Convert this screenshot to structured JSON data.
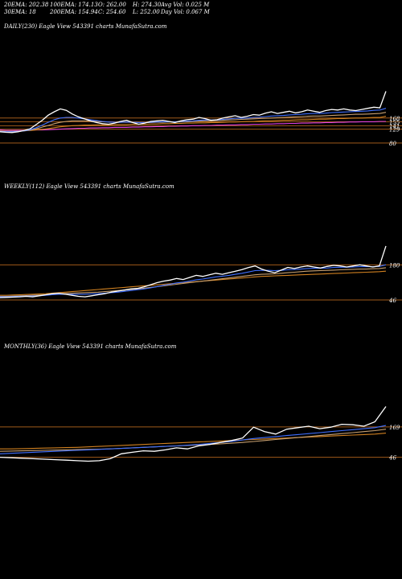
{
  "header": {
    "ema20": "20EMA: 202.38",
    "ema100": "100EMA: 174.13",
    "open": "O: 262.00",
    "high": "H: 274.30",
    "avgvol": "Avg Vol: 0.025 M",
    "ema30": "30EMA: 18",
    "ema200": "200EMA: 154.94",
    "close": "C: 254.60",
    "low": "L: 252.00",
    "dayvol": "Day Vol: 0.067 M"
  },
  "panels": [
    {
      "title": "DAILY(230) Eagle   View  543391 charts MunafaSutra.com"
    },
    {
      "title": "WEEKLY(112) Eagle   View  543391 charts MunafaSutra.com"
    },
    {
      "title": "MONTHLY(36) Eagle   View  543391 charts MunafaSutra.com"
    }
  ],
  "colors": {
    "price": "#ffffff",
    "ema_blue": "#3f6fff",
    "ema_magenta": "#e040e0",
    "ema_orange": "#d08020",
    "ema_tan": "#c8a070",
    "level_line": "#a05a1a"
  },
  "chart_data": [
    {
      "type": "line",
      "title": "DAILY(230) Eagle View 543391 charts MunafaSutra.com",
      "level_labels": [
        "168",
        "155",
        "141",
        "129",
        "80"
      ],
      "levels": [
        168,
        155,
        141,
        129,
        80
      ],
      "series": [
        {
          "values": [
            120,
            118,
            117,
            120,
            124,
            130,
            145,
            160,
            178,
            190,
            200,
            195,
            182,
            172,
            165,
            158,
            152,
            148,
            146,
            150,
            156,
            160,
            152,
            146,
            150,
            156,
            158,
            160,
            156,
            152,
            158,
            162,
            164,
            170,
            166,
            160,
            162,
            168,
            172,
            176,
            170,
            174,
            180,
            178,
            185,
            190,
            184,
            188,
            192,
            186,
            190,
            196,
            192,
            188,
            194,
            198,
            196,
            200,
            196,
            194,
            198,
            202,
            206,
            204,
            262
          ]
        },
        {
          "values": [
            121,
            120,
            120,
            121,
            123,
            127,
            134,
            143,
            153,
            162,
            168,
            170,
            170,
            168,
            165,
            162,
            159,
            156,
            154,
            153,
            153,
            154,
            153,
            152,
            152,
            153,
            154,
            155,
            155,
            155,
            156,
            157,
            158,
            160,
            161,
            161,
            161,
            163,
            165,
            167,
            167,
            168,
            170,
            171,
            173,
            175,
            176,
            177,
            179,
            180,
            181,
            183,
            184,
            184,
            185,
            187,
            188,
            189,
            190,
            191,
            192,
            193,
            195,
            196,
            202
          ]
        },
        {
          "values": [
            122,
            121,
            121,
            122,
            123,
            125,
            130,
            136,
            142,
            148,
            153,
            156,
            158,
            158,
            158,
            157,
            156,
            155,
            154,
            153,
            153,
            153,
            153,
            152,
            152,
            152,
            153,
            153,
            154,
            154,
            154,
            155,
            156,
            157,
            158,
            158,
            159,
            160,
            161,
            162,
            163,
            164,
            165,
            166,
            167,
            168,
            169,
            170,
            171,
            172,
            173,
            174,
            175,
            175,
            176,
            177,
            178,
            179,
            180,
            181,
            181,
            182,
            183,
            184,
            188
          ]
        },
        {
          "values": [
            123,
            122,
            122,
            122,
            123,
            124,
            126,
            128,
            131,
            134,
            137,
            139,
            141,
            142,
            143,
            143,
            144,
            144,
            144,
            145,
            145,
            145,
            146,
            146,
            146,
            147,
            147,
            148,
            148,
            149,
            149,
            150,
            150,
            151,
            151,
            152,
            152,
            153,
            154,
            154,
            155,
            156,
            156,
            157,
            158,
            158,
            159,
            160,
            160,
            161,
            162,
            162,
            163,
            164,
            164,
            165,
            166,
            166,
            167,
            168,
            168,
            169,
            170,
            170,
            174
          ]
        },
        {
          "values": [
            126,
            125,
            125,
            125,
            125,
            125,
            126,
            126,
            127,
            128,
            129,
            130,
            131,
            132,
            132,
            133,
            133,
            134,
            134,
            135,
            135,
            135,
            136,
            136,
            137,
            137,
            138,
            138,
            139,
            139,
            140,
            140,
            141,
            141,
            142,
            142,
            143,
            143,
            144,
            144,
            145,
            145,
            146,
            146,
            147,
            147,
            148,
            148,
            149,
            149,
            150,
            150,
            151,
            151,
            152,
            152,
            153,
            153,
            154,
            154,
            155,
            155,
            155,
            156,
            156
          ]
        }
      ]
    },
    {
      "type": "line",
      "title": "WEEKLY(112) Eagle View 543391 charts MunafaSutra.com",
      "level_labels": [
        "180",
        "46"
      ],
      "levels": [
        180,
        46
      ],
      "series": [
        {
          "values": [
            55,
            56,
            57,
            58,
            60,
            58,
            62,
            66,
            70,
            72,
            68,
            64,
            60,
            58,
            62,
            66,
            70,
            76,
            80,
            84,
            88,
            90,
            96,
            104,
            112,
            118,
            122,
            128,
            124,
            132,
            140,
            136,
            142,
            148,
            144,
            150,
            156,
            162,
            170,
            176,
            164,
            156,
            150,
            160,
            170,
            166,
            172,
            176,
            172,
            168,
            174,
            178,
            176,
            172,
            176,
            180,
            176,
            172,
            176,
            252
          ]
        },
        {
          "values": [
            58,
            58,
            59,
            60,
            61,
            61,
            62,
            64,
            66,
            68,
            68,
            68,
            68,
            68,
            69,
            70,
            72,
            74,
            76,
            79,
            82,
            85,
            88,
            92,
            97,
            102,
            106,
            111,
            114,
            118,
            123,
            126,
            130,
            134,
            137,
            140,
            144,
            148,
            153,
            158,
            159,
            159,
            158,
            159,
            161,
            162,
            164,
            166,
            167,
            167,
            168,
            170,
            171,
            171,
            172,
            173,
            173,
            173,
            174,
            180
          ]
        },
        {
          "values": [
            60,
            60,
            61,
            62,
            63,
            64,
            65,
            66,
            68,
            70,
            71,
            72,
            73,
            74,
            75,
            76,
            78,
            80,
            82,
            84,
            86,
            88,
            91,
            94,
            97,
            100,
            103,
            106,
            109,
            112,
            115,
            118,
            121,
            124,
            127,
            130,
            133,
            136,
            139,
            142,
            144,
            145,
            146,
            148,
            150,
            152,
            154,
            156,
            157,
            158,
            159,
            160,
            161,
            162,
            163,
            164,
            164,
            165,
            166,
            169
          ]
        },
        {
          "values": [
            64,
            64,
            65,
            66,
            67,
            68,
            69,
            70,
            72,
            74,
            76,
            78,
            80,
            82,
            84,
            86,
            88,
            90,
            92,
            94,
            96,
            98,
            100,
            102,
            104,
            106,
            108,
            110,
            112,
            114,
            116,
            118,
            120,
            122,
            124,
            126,
            128,
            130,
            132,
            134,
            136,
            137,
            138,
            139,
            140,
            141,
            142,
            143,
            144,
            145,
            146,
            147,
            148,
            149,
            150,
            151,
            152,
            153,
            154,
            156
          ]
        }
      ]
    },
    {
      "type": "line",
      "title": "MONTHLY(36) Eagle View 543391 charts MunafaSutra.com",
      "level_labels": [
        "169",
        "46"
      ],
      "levels": [
        169,
        46
      ],
      "series": [
        {
          "values": [
            46,
            44,
            42,
            40,
            38,
            36,
            34,
            32,
            30,
            32,
            40,
            60,
            66,
            72,
            70,
            76,
            84,
            80,
            92,
            98,
            106,
            114,
            124,
            168,
            150,
            140,
            160,
            166,
            172,
            162,
            168,
            180,
            178,
            172,
            190,
            252
          ]
        },
        {
          "values": [
            60,
            62,
            64,
            66,
            68,
            70,
            72,
            74,
            76,
            78,
            80,
            82,
            84,
            86,
            88,
            90,
            92,
            95,
            98,
            102,
            106,
            110,
            116,
            122,
            126,
            130,
            134,
            138,
            142,
            146,
            150,
            154,
            158,
            162,
            166,
            175
          ]
        },
        {
          "values": [
            70,
            71,
            72,
            73,
            74,
            75,
            76,
            77,
            78,
            79,
            80,
            82,
            84,
            86,
            88,
            90,
            92,
            94,
            96,
            98,
            100,
            103,
            106,
            110,
            114,
            118,
            122,
            126,
            130,
            134,
            138,
            142,
            146,
            150,
            154,
            160
          ]
        },
        {
          "values": [
            80,
            80,
            81,
            82,
            83,
            84,
            85,
            86,
            88,
            90,
            92,
            94,
            96,
            98,
            100,
            102,
            104,
            106,
            108,
            110,
            112,
            114,
            116,
            118,
            120,
            122,
            124,
            126,
            128,
            130,
            132,
            134,
            136,
            138,
            140,
            144
          ]
        }
      ]
    }
  ]
}
